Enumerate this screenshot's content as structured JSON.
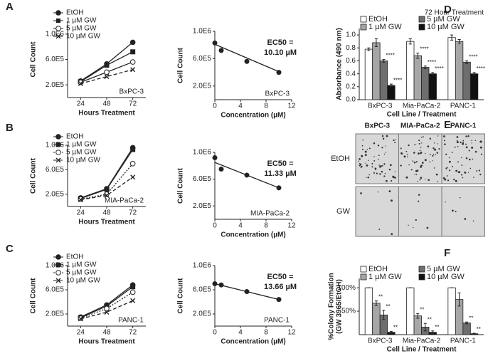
{
  "panels": [
    "A",
    "B",
    "C",
    "D",
    "E",
    "F"
  ],
  "colony_image": {
    "columns": [
      "BxPC-3",
      "MIA-PaCa-2",
      "PANC-1"
    ],
    "rows": [
      "EtOH",
      "GW"
    ]
  },
  "chart_data": [
    {
      "type": "line",
      "xlabel": "Hours Treatment",
      "ylabel": "Cell Count",
      "cell_line": "BxPC-3",
      "x": [
        24,
        48,
        72
      ],
      "xlim": [
        12,
        84
      ],
      "xticks": [
        24,
        48,
        72
      ],
      "ylim": [
        0,
        1200000
      ],
      "yticks": [
        {
          "value": 200000,
          "label": "2.0E5"
        },
        {
          "value": 600000,
          "label": "6.0E5"
        },
        {
          "value": 1000000,
          "label": "1.0E6"
        }
      ],
      "series": [
        {
          "name": "EtOH",
          "color": "#222222",
          "marker": "circle",
          "dash": "solid",
          "values": [
            260000,
            530000,
            870000
          ]
        },
        {
          "name": "1 µM GW",
          "color": "#222222",
          "marker": "square",
          "dash": "solid",
          "values": [
            250000,
            510000,
            720000
          ]
        },
        {
          "name": "5 µM GW",
          "color": "#222222",
          "marker": "open-circle",
          "dash": "solid",
          "values": [
            240000,
            400000,
            560000
          ]
        },
        {
          "name": "10 µM GW",
          "color": "#222222",
          "marker": "x",
          "dash": "dashed",
          "values": [
            220000,
            330000,
            440000
          ]
        }
      ]
    },
    {
      "type": "scatter",
      "xlabel": "Concentration (µM)",
      "ylabel": "Cell Count",
      "cell_line": "BxPC-3",
      "ec50_label": "EC50 =",
      "ec50_value": "10.10 µM",
      "x": [
        0,
        1,
        5,
        10
      ],
      "values": [
        830000,
        720000,
        560000,
        400000
      ],
      "fit": {
        "x": [
          0,
          10
        ],
        "y": [
          810000,
          410000
        ]
      },
      "xlim": [
        0,
        12
      ],
      "xticks": [
        0,
        4,
        8,
        12
      ],
      "ylim": [
        0,
        1000000
      ],
      "yticks": [
        {
          "value": 200000,
          "label": "2.0E5"
        },
        {
          "value": 600000,
          "label": "6.0E5"
        },
        {
          "value": 1000000,
          "label": "1.0E6"
        }
      ]
    },
    {
      "type": "line",
      "xlabel": "Hours Treatment",
      "ylabel": "Cell Count",
      "cell_line": "MIA-PaCa-2",
      "x": [
        24,
        48,
        72
      ],
      "xlim": [
        12,
        84
      ],
      "xticks": [
        24,
        48,
        72
      ],
      "ylim": [
        0,
        1000000
      ],
      "yticks": [
        {
          "value": 200000,
          "label": "2.0E5"
        },
        {
          "value": 600000,
          "label": "6.0E5"
        },
        {
          "value": 1000000,
          "label": "1.0E6"
        }
      ],
      "series": [
        {
          "name": "EtOH",
          "color": "#222222",
          "marker": "circle",
          "dash": "solid",
          "values": [
            140000,
            290000,
            960000
          ]
        },
        {
          "name": "1 µM GW",
          "color": "#222222",
          "marker": "square",
          "dash": "solid",
          "values": [
            130000,
            280000,
            930000
          ]
        },
        {
          "name": "5 µM GW",
          "color": "#222222",
          "marker": "open-circle",
          "dash": "dotted",
          "values": [
            120000,
            200000,
            700000
          ]
        },
        {
          "name": "10 µM GW",
          "color": "#222222",
          "marker": "x",
          "dash": "dashed",
          "values": [
            110000,
            180000,
            480000
          ]
        }
      ]
    },
    {
      "type": "scatter",
      "xlabel": "Concentration (µM)",
      "ylabel": "Cell Count",
      "cell_line": "MIA-PaCa-2",
      "ec50_label": "EC50 =",
      "ec50_value": "11.33 µM",
      "x": [
        0,
        1,
        5,
        10
      ],
      "values": [
        920000,
        750000,
        660000,
        470000
      ],
      "fit": {
        "x": [
          0,
          10
        ],
        "y": [
          850000,
          470000
        ]
      },
      "xlim": [
        0,
        12
      ],
      "xticks": [
        0,
        4,
        8,
        12
      ],
      "ylim": [
        0,
        1000000
      ],
      "yticks": [
        {
          "value": 200000,
          "label": "2.0E5"
        },
        {
          "value": 600000,
          "label": "6.0E5"
        },
        {
          "value": 1000000,
          "label": "1.0E6"
        }
      ]
    },
    {
      "type": "line",
      "xlabel": "Hours Treatment",
      "ylabel": "Cell Count",
      "cell_line": "PANC-1",
      "x": [
        24,
        48,
        72
      ],
      "xlim": [
        12,
        84
      ],
      "xticks": [
        24,
        48,
        72
      ],
      "ylim": [
        0,
        1000000
      ],
      "yticks": [
        {
          "value": 200000,
          "label": "2.0E5"
        },
        {
          "value": 600000,
          "label": "6.0E5"
        },
        {
          "value": 1000000,
          "label": "1.0E6"
        }
      ],
      "series": [
        {
          "name": "EtOH",
          "color": "#222222",
          "marker": "circle",
          "dash": "solid",
          "values": [
            150000,
            350000,
            680000
          ]
        },
        {
          "name": "1 µM GW",
          "color": "#222222",
          "marker": "square",
          "dash": "solid",
          "values": [
            140000,
            330000,
            650000
          ]
        },
        {
          "name": "5 µM GW",
          "color": "#222222",
          "marker": "open-circle",
          "dash": "dotted",
          "values": [
            130000,
            290000,
            560000
          ]
        },
        {
          "name": "10 µM GW",
          "color": "#222222",
          "marker": "x",
          "dash": "dashed",
          "values": [
            120000,
            230000,
            420000
          ]
        }
      ]
    },
    {
      "type": "scatter",
      "xlabel": "Concentration (µM)",
      "ylabel": "Cell Count",
      "cell_line": "PANC-1",
      "ec50_label": "EC50 =",
      "ec50_value": "13.66 µM",
      "x": [
        0,
        1,
        5,
        10
      ],
      "values": [
        700000,
        680000,
        570000,
        440000
      ],
      "fit": {
        "x": [
          0,
          10
        ],
        "y": [
          700000,
          440000
        ]
      },
      "xlim": [
        0,
        12
      ],
      "xticks": [
        0,
        4,
        8,
        12
      ],
      "ylim": [
        0,
        1000000
      ],
      "yticks": [
        {
          "value": 200000,
          "label": "2.0E5"
        },
        {
          "value": 600000,
          "label": "6.0E5"
        },
        {
          "value": 1000000,
          "label": "1.0E6"
        }
      ]
    },
    {
      "type": "bar",
      "title": "72 Hour Treatment",
      "xlabel": "Cell Line / Treatment",
      "ylabel": [
        "Absorbance (490 nm)"
      ],
      "categories": [
        "BxPC-3",
        "Mia-PaCa-2",
        "PANC-1"
      ],
      "ylim": [
        0,
        1.1
      ],
      "yticks": [
        {
          "value": 0,
          "label": "0.0"
        },
        0.2,
        0.4,
        0.6,
        0.8,
        {
          "value": 1,
          "label": "1.0"
        }
      ],
      "series": [
        {
          "name": "EtOH",
          "color": "#ffffff",
          "values": [
            0.78,
            0.9,
            0.96
          ],
          "errors": [
            0.02,
            0.04,
            0.04
          ],
          "stars": [
            null,
            null,
            null
          ]
        },
        {
          "name": "1 µM GW",
          "color": "#a6a6a6",
          "values": [
            0.88,
            0.68,
            0.9
          ],
          "errors": [
            0.06,
            0.04,
            0.03
          ],
          "stars": [
            null,
            "****",
            null
          ]
        },
        {
          "name": "5 µM GW",
          "color": "#6e6e6e",
          "values": [
            0.6,
            0.5,
            0.58
          ],
          "errors": [
            0.02,
            0.02,
            0.02
          ],
          "stars": [
            "****",
            "****",
            "****"
          ]
        },
        {
          "name": "10 µM GW",
          "color": "#111111",
          "values": [
            0.22,
            0.4,
            0.4
          ],
          "errors": [
            0.02,
            0.02,
            0.02
          ],
          "stars": [
            "****",
            "****",
            "****"
          ]
        }
      ]
    },
    {
      "type": "bar",
      "xlabel": "Cell Line / Treatment",
      "ylabel": [
        "%Colony Formation",
        "(GW 3965/EtOH)"
      ],
      "categories": [
        "BxPC-3",
        "Mia-PaCa-2",
        "PANC-1"
      ],
      "ylim": [
        0,
        120
      ],
      "yticks": [
        {
          "value": 50,
          "label": "50%"
        },
        {
          "value": 100,
          "label": "100%"
        }
      ],
      "series": [
        {
          "name": "EtOH",
          "color": "#ffffff",
          "values": [
            100,
            100,
            100
          ],
          "errors": [
            0,
            0,
            0
          ],
          "stars": [
            null,
            null,
            null
          ]
        },
        {
          "name": "1 µM GW",
          "color": "#a6a6a6",
          "values": [
            67,
            40,
            75
          ],
          "errors": [
            5,
            5,
            14
          ],
          "stars": [
            "**",
            "**",
            null
          ]
        },
        {
          "name": "5 µM GW",
          "color": "#6e6e6e",
          "values": [
            42,
            16,
            25
          ],
          "errors": [
            10,
            8,
            2
          ],
          "stars": [
            "**",
            "**",
            "**"
          ]
        },
        {
          "name": "10 µM GW",
          "color": "#111111",
          "values": [
            5,
            5,
            2
          ],
          "errors": [
            2,
            3,
            1
          ],
          "stars": [
            "**",
            "**",
            "**"
          ]
        }
      ]
    }
  ]
}
